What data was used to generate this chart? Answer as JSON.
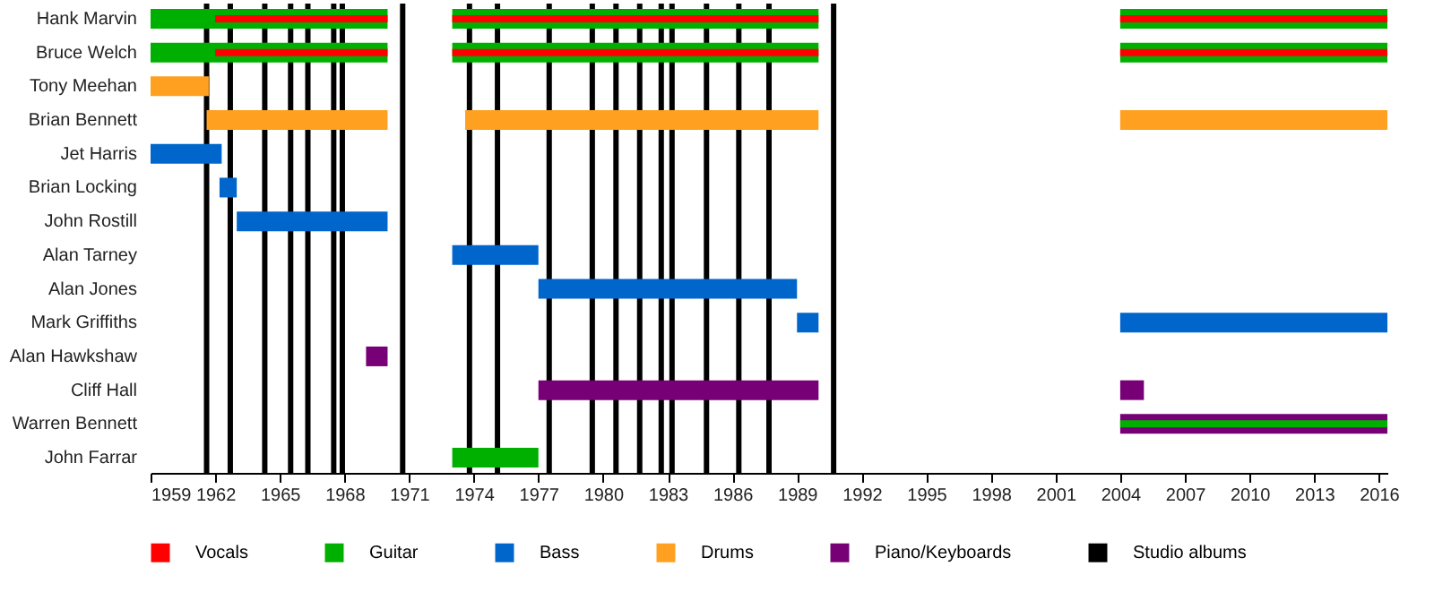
{
  "chart_data": {
    "type": "bar",
    "orientation": "horizontal",
    "legend": "bottom",
    "grid": false,
    "categories": [
      "Hank Marvin",
      "Bruce Welch",
      "Tony Meehan",
      "Brian Bennett",
      "Jet Harris",
      "Brian Locking",
      "John Rostill",
      "Alan Tarney",
      "Alan Jones",
      "Mark Griffiths",
      "Alan Hawkshaw",
      "Cliff Hall",
      "Warren Bennett",
      "John Farrar"
    ],
    "xlim": [
      1959,
      2016.4
    ],
    "xticks": [
      1959,
      1962,
      1965,
      1968,
      1971,
      1974,
      1977,
      1980,
      1983,
      1986,
      1989,
      1992,
      1995,
      1998,
      2001,
      2004,
      2007,
      2010,
      2013,
      2016
    ],
    "series": [
      {
        "name": "Vocals",
        "color": "#ff0000",
        "values": [
          8,
          8,
          null,
          null,
          null,
          null,
          null,
          null,
          null,
          null,
          null,
          null,
          null,
          null
        ],
        "base": [
          1962,
          1962,
          null,
          null,
          null,
          null,
          null,
          null,
          null,
          null,
          null,
          null,
          null,
          null
        ]
      },
      {
        "color": "#ff0000",
        "values": [
          17,
          17,
          null,
          null,
          null,
          null,
          null,
          null,
          null,
          null,
          null,
          null,
          null,
          null
        ],
        "base": [
          1973,
          1973,
          null,
          null,
          null,
          null,
          null,
          null,
          null,
          null,
          null,
          null,
          null,
          null
        ]
      },
      {
        "color": "#ff0000",
        "values": [
          12.4,
          12.4,
          null,
          null,
          null,
          null,
          null,
          null,
          null,
          null,
          null,
          null,
          null,
          null
        ],
        "base": [
          2004,
          2004,
          null,
          null,
          null,
          null,
          null,
          null,
          null,
          null,
          null,
          null,
          null,
          null
        ]
      },
      {
        "name": "Guitar",
        "color": "#00b000",
        "values": [
          11,
          11,
          null,
          null,
          null,
          null,
          null,
          null,
          null,
          null,
          null,
          null,
          null,
          null
        ],
        "base": [
          1959,
          1959,
          null,
          null,
          null,
          null,
          null,
          null,
          null,
          null,
          null,
          null,
          null,
          null
        ]
      },
      {
        "color": "#00b000",
        "values": [
          17,
          17,
          null,
          null,
          null,
          null,
          null,
          null,
          null,
          null,
          null,
          null,
          null,
          4
        ],
        "base": [
          1973,
          1973,
          null,
          null,
          null,
          null,
          null,
          null,
          null,
          null,
          null,
          null,
          null,
          1973
        ]
      },
      {
        "color": "#00b000",
        "values": [
          12.4,
          12.4,
          null,
          null,
          null,
          null,
          null,
          null,
          null,
          null,
          null,
          null,
          null,
          null
        ],
        "base": [
          2004,
          2004,
          null,
          null,
          null,
          null,
          null,
          null,
          null,
          null,
          null,
          null,
          null,
          null
        ]
      },
      {
        "color": "#00b000",
        "values": [
          null,
          null,
          null,
          null,
          null,
          null,
          null,
          null,
          null,
          null,
          null,
          null,
          12.4,
          null
        ],
        "base": [
          null,
          null,
          null,
          null,
          null,
          null,
          null,
          null,
          null,
          null,
          null,
          null,
          2004,
          null
        ]
      },
      {
        "name": "Bass",
        "color": "#0066cc",
        "values": [
          null,
          null,
          null,
          null,
          3.3,
          0.8,
          7,
          null,
          null,
          null,
          null,
          null,
          null,
          null
        ],
        "base": [
          null,
          null,
          null,
          null,
          1959,
          1962.2,
          1963,
          null,
          null,
          null,
          null,
          null,
          null,
          null
        ]
      },
      {
        "color": "#0066cc",
        "values": [
          null,
          null,
          null,
          null,
          null,
          null,
          null,
          4,
          12,
          1,
          null,
          null,
          null,
          null
        ],
        "base": [
          null,
          null,
          null,
          null,
          null,
          null,
          null,
          1973,
          1977,
          1989,
          null,
          null,
          null,
          null
        ]
      },
      {
        "color": "#0066cc",
        "values": [
          null,
          null,
          null,
          null,
          null,
          null,
          null,
          null,
          null,
          12.4,
          null,
          null,
          null,
          null
        ],
        "base": [
          null,
          null,
          null,
          null,
          null,
          null,
          null,
          null,
          null,
          2004,
          null,
          null,
          null,
          null
        ]
      },
      {
        "name": "Drums",
        "color": "#ffa020",
        "values": [
          null,
          null,
          2.7,
          8.4,
          null,
          null,
          null,
          null,
          null,
          null,
          null,
          null,
          null,
          null
        ],
        "base": [
          null,
          null,
          1959,
          1961.6,
          null,
          null,
          null,
          null,
          null,
          null,
          null,
          null,
          null,
          null
        ]
      },
      {
        "color": "#ffa020",
        "values": [
          null,
          null,
          null,
          16.4,
          null,
          null,
          null,
          null,
          null,
          null,
          null,
          null,
          null,
          null
        ],
        "base": [
          null,
          null,
          null,
          1973.6,
          null,
          null,
          null,
          null,
          null,
          null,
          null,
          null,
          null,
          null
        ]
      },
      {
        "color": "#ffa020",
        "values": [
          null,
          null,
          null,
          12.4,
          null,
          null,
          null,
          null,
          null,
          null,
          null,
          null,
          null,
          null
        ],
        "base": [
          null,
          null,
          null,
          2004,
          null,
          null,
          null,
          null,
          null,
          null,
          null,
          null,
          null,
          null
        ]
      },
      {
        "name": "Piano/Keyboards",
        "color": "#770077",
        "values": [
          null,
          null,
          null,
          null,
          null,
          null,
          null,
          null,
          null,
          null,
          1,
          13,
          null,
          null
        ],
        "base": [
          null,
          null,
          null,
          null,
          null,
          null,
          null,
          null,
          null,
          null,
          1969,
          1977,
          null,
          null
        ]
      },
      {
        "color": "#770077",
        "values": [
          null,
          null,
          null,
          null,
          null,
          null,
          null,
          null,
          null,
          null,
          null,
          1.1,
          12.4,
          null
        ],
        "base": [
          null,
          null,
          null,
          null,
          null,
          null,
          null,
          null,
          null,
          null,
          null,
          2004,
          2004,
          null
        ]
      }
    ],
    "ref_lines": [
      {
        "axis": "x",
        "value": 1961.6,
        "label": "Studio albums",
        "color": "#000000"
      },
      {
        "axis": "x",
        "value": 1962.7,
        "color": "#000000"
      },
      {
        "axis": "x",
        "value": 1964.3,
        "color": "#000000"
      },
      {
        "axis": "x",
        "value": 1965.5,
        "color": "#000000"
      },
      {
        "axis": "x",
        "value": 1966.3,
        "color": "#000000"
      },
      {
        "axis": "x",
        "value": 1967.5,
        "color": "#000000"
      },
      {
        "axis": "x",
        "value": 1967.9,
        "color": "#000000"
      },
      {
        "axis": "x",
        "value": 1970.7,
        "color": "#000000"
      },
      {
        "axis": "x",
        "value": 1973.8,
        "color": "#000000"
      },
      {
        "axis": "x",
        "value": 1975.1,
        "color": "#000000"
      },
      {
        "axis": "x",
        "value": 1977.5,
        "color": "#000000"
      },
      {
        "axis": "x",
        "value": 1979.5,
        "color": "#000000"
      },
      {
        "axis": "x",
        "value": 1980.6,
        "color": "#000000"
      },
      {
        "axis": "x",
        "value": 1981.7,
        "color": "#000000"
      },
      {
        "axis": "x",
        "value": 1982.7,
        "color": "#000000"
      },
      {
        "axis": "x",
        "value": 1983.2,
        "color": "#000000"
      },
      {
        "axis": "x",
        "value": 1984.8,
        "color": "#000000"
      },
      {
        "axis": "x",
        "value": 1986.3,
        "color": "#000000"
      },
      {
        "axis": "x",
        "value": 1987.7,
        "color": "#000000"
      },
      {
        "axis": "x",
        "value": 1990.7,
        "color": "#000000"
      }
    ]
  }
}
